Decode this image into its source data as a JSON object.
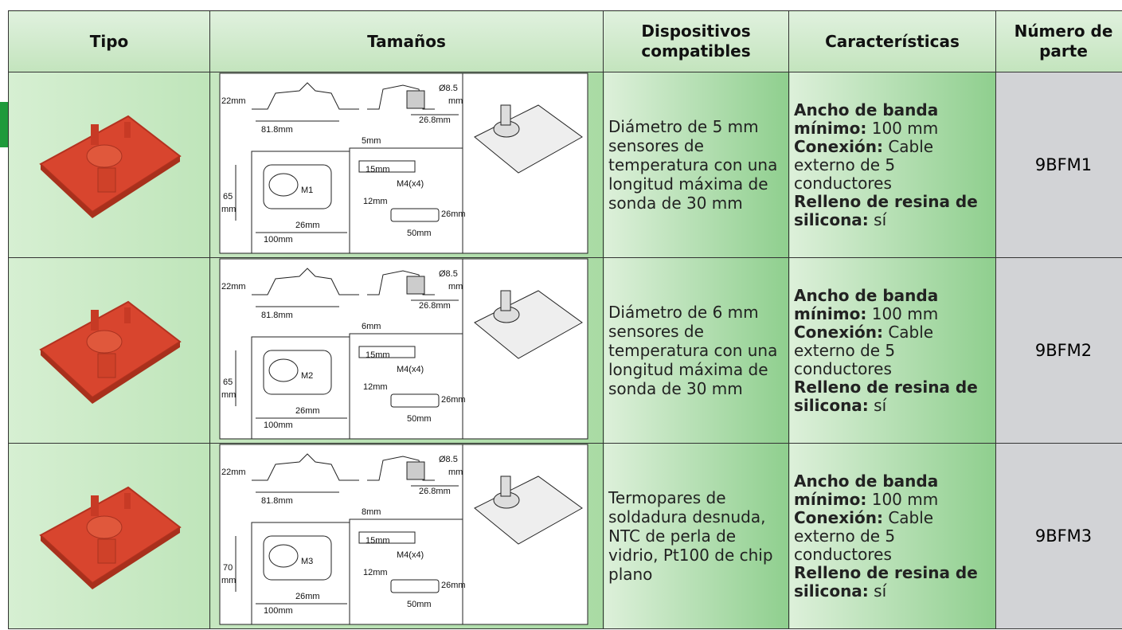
{
  "table": {
    "headers": [
      "Tipo",
      "Tamaños",
      "Dispositivos compatibles",
      "Características",
      "Número de parte"
    ],
    "rows": [
      {
        "sizes": {
          "height": "22mm",
          "dia": "Ø8.5",
          "dia_unit": "mm",
          "length": "81.8mm",
          "width": "26.8mm",
          "gap": "5mm",
          "body_h": "65",
          "body_h_unit": "mm",
          "model": "M1",
          "hole": "26mm",
          "total": "100mm",
          "clip_h": "15mm",
          "screw": "M4(x4)",
          "clip_w": "12mm",
          "clip_side": "26mm",
          "clip_len": "50mm"
        },
        "devices": "Diámetro de 5 mm sensores de temperatura con una longitud máxima de sonda de 30 mm",
        "features": [
          {
            "label": "Ancho de banda mínimo:",
            "value": "100 mm"
          },
          {
            "label": "Conexión:",
            "value": "Cable externo de 5 conductores"
          },
          {
            "label": "Relleno de resina de silicona:",
            "value": "sí"
          }
        ],
        "part": "9BFM1"
      },
      {
        "sizes": {
          "height": "22mm",
          "dia": "Ø8.5",
          "dia_unit": "mm",
          "length": "81.8mm",
          "width": "26.8mm",
          "gap": "6mm",
          "body_h": "65",
          "body_h_unit": "mm",
          "model": "M2",
          "hole": "26mm",
          "total": "100mm",
          "clip_h": "15mm",
          "screw": "M4(x4)",
          "clip_w": "12mm",
          "clip_side": "26mm",
          "clip_len": "50mm"
        },
        "devices": "Diámetro de 6 mm sensores de temperatura con una longitud máxima de sonda de 30 mm",
        "features": [
          {
            "label": "Ancho de banda mínimo:",
            "value": "100 mm"
          },
          {
            "label": "Conexión:",
            "value": "Cable externo de 5 conductores"
          },
          {
            "label": "Relleno de resina de silicona:",
            "value": "sí"
          }
        ],
        "part": "9BFM2"
      },
      {
        "sizes": {
          "height": "22mm",
          "dia": "Ø8.5",
          "dia_unit": "mm",
          "length": "81.8mm",
          "width": "26.8mm",
          "gap": "8mm",
          "body_h": "70",
          "body_h_unit": "mm",
          "model": "M3",
          "hole": "26mm",
          "total": "100mm",
          "clip_h": "15mm",
          "screw": "M4(x4)",
          "clip_w": "12mm",
          "clip_side": "26mm",
          "clip_len": "50mm"
        },
        "devices": "Termopares de soldadura desnuda, NTC de perla de vidrio, Pt100 de chip plano",
        "features": [
          {
            "label": "Ancho de banda mínimo:",
            "value": "100 mm"
          },
          {
            "label": "Conexión:",
            "value": "Cable externo de 5 conductores"
          },
          {
            "label": "Relleno de resina de silicona:",
            "value": "sí"
          }
        ],
        "part": "9BFM3"
      }
    ]
  }
}
